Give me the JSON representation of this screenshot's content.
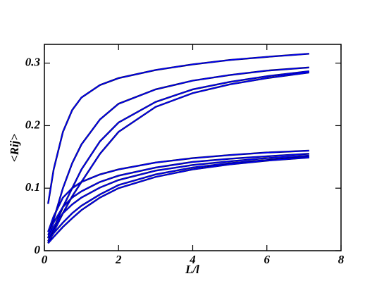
{
  "chart_data": {
    "type": "line",
    "xlabel": "L/l",
    "ylabel": "<Rij>",
    "x": [
      0.1,
      0.25,
      0.5,
      0.75,
      1,
      1.5,
      2,
      3,
      4,
      5,
      6,
      7.14
    ],
    "series": [
      {
        "color": "#0000ee",
        "values": [
          0.075,
          0.13,
          0.19,
          0.225,
          0.245,
          0.265,
          0.276,
          0.289,
          0.298,
          0.305,
          0.31,
          0.315
        ]
      },
      {
        "color": "#0000ee",
        "values": [
          0.02,
          0.05,
          0.1,
          0.14,
          0.17,
          0.21,
          0.235,
          0.258,
          0.272,
          0.281,
          0.288,
          0.293
        ]
      },
      {
        "color": "#0000ee",
        "values": [
          0.015,
          0.035,
          0.07,
          0.1,
          0.13,
          0.175,
          0.205,
          0.238,
          0.258,
          0.27,
          0.279,
          0.287
        ]
      },
      {
        "color": "#0000ee",
        "values": [
          0.012,
          0.03,
          0.06,
          0.087,
          0.11,
          0.155,
          0.19,
          0.23,
          0.252,
          0.266,
          0.276,
          0.285
        ]
      },
      {
        "color": "#0000ee",
        "values": [
          0.03,
          0.055,
          0.085,
          0.1,
          0.11,
          0.122,
          0.13,
          0.141,
          0.148,
          0.153,
          0.157,
          0.16
        ]
      },
      {
        "color": "#0000ee",
        "values": [
          0.025,
          0.045,
          0.07,
          0.085,
          0.095,
          0.11,
          0.12,
          0.133,
          0.142,
          0.147,
          0.151,
          0.155
        ]
      },
      {
        "color": "#0000ee",
        "values": [
          0.02,
          0.038,
          0.06,
          0.074,
          0.085,
          0.101,
          0.113,
          0.128,
          0.137,
          0.143,
          0.148,
          0.152
        ]
      },
      {
        "color": "#0000ee",
        "values": [
          0.015,
          0.028,
          0.045,
          0.06,
          0.072,
          0.09,
          0.105,
          0.122,
          0.133,
          0.14,
          0.145,
          0.15
        ]
      },
      {
        "color": "#0000ee",
        "values": [
          0.012,
          0.022,
          0.038,
          0.052,
          0.065,
          0.085,
          0.1,
          0.118,
          0.13,
          0.138,
          0.144,
          0.149
        ]
      }
    ],
    "xlim": [
      0,
      8
    ],
    "xticks": [
      0,
      2,
      4,
      6,
      8
    ],
    "ylim": [
      0,
      0.33
    ],
    "yticks": [
      0,
      0.1,
      0.2,
      0.3
    ]
  }
}
